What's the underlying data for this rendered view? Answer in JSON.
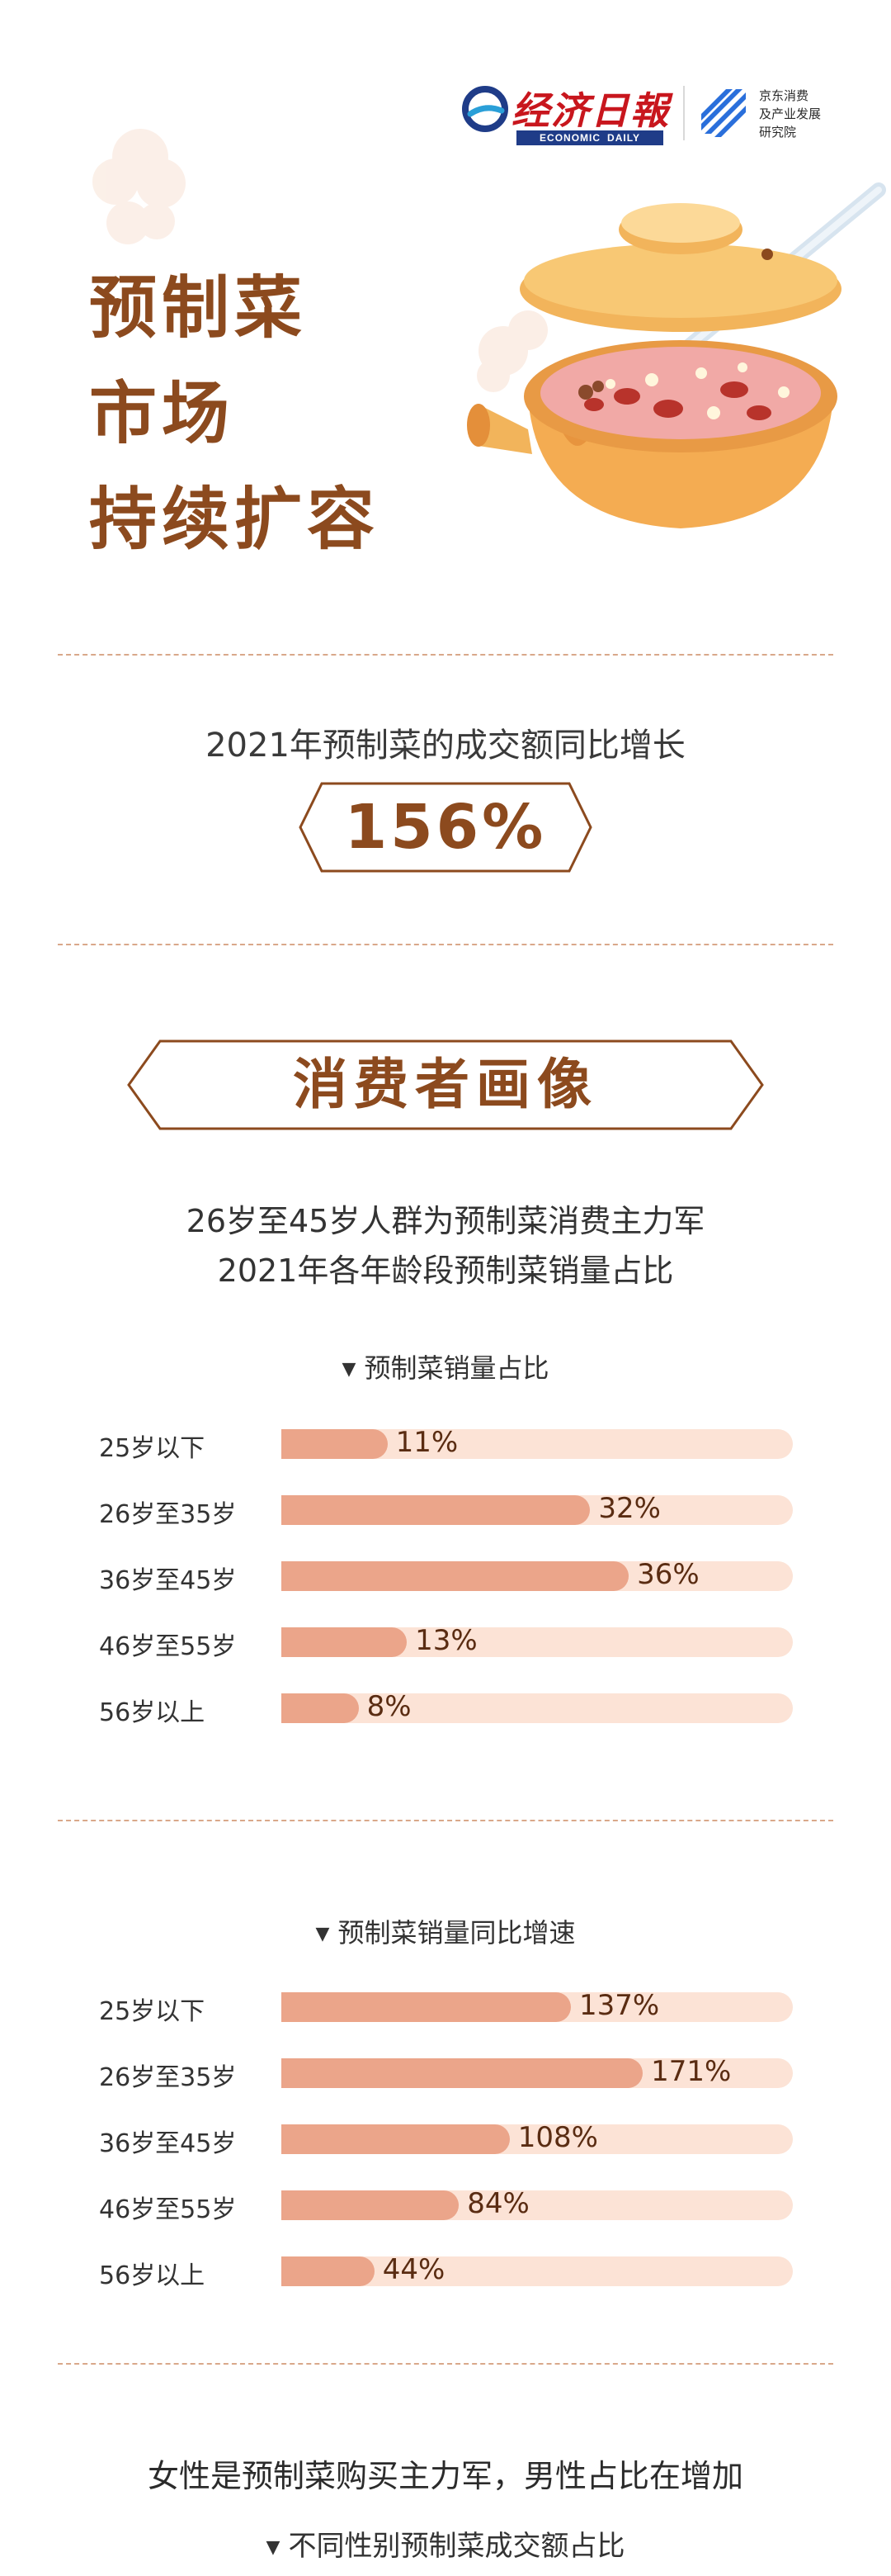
{
  "header": {
    "brand_cn": "经济日報",
    "brand_en_left": "ECONOMIC",
    "brand_en_right": "DAILY",
    "jd_lines": [
      "京东消费",
      "及产业发展",
      "研究院"
    ],
    "colors": {
      "brand_red": "#c8161d",
      "brand_blue": "#1f3c88",
      "jd_blue": "#2a6fdb"
    }
  },
  "hero": {
    "title_lines": [
      "预制菜",
      "市场",
      "持续扩容"
    ],
    "illustration": "clay-pot-icon"
  },
  "stat": {
    "caption": "2021年预制菜的成交额同比增长",
    "value": "156%"
  },
  "section": {
    "title": "消费者画像",
    "subtitle_1": "26岁至45岁人群为预制菜消费主力军",
    "subtitle_2": "2021年各年龄段预制菜销量占比"
  },
  "chart_data": [
    {
      "type": "bar",
      "title": "预制菜销量占比",
      "categories": [
        "25岁以下",
        "26岁至35岁",
        "36岁至45岁",
        "46岁至55岁",
        "56岁以上"
      ],
      "values": [
        11,
        32,
        36,
        13,
        8
      ],
      "labels": [
        "11%",
        "32%",
        "36%",
        "13%",
        "8%"
      ],
      "unit": "%",
      "xlim": [
        0,
        53
      ]
    },
    {
      "type": "bar",
      "title": "预制菜销量同比增速",
      "categories": [
        "25岁以下",
        "26岁至35岁",
        "36岁至45岁",
        "46岁至55岁",
        "56岁以上"
      ],
      "values": [
        137,
        171,
        108,
        84,
        44
      ],
      "labels": [
        "137%",
        "171%",
        "108%",
        "84%",
        "44%"
      ],
      "unit": "%",
      "xlim": [
        0,
        242
      ]
    }
  ],
  "chart_colors": {
    "bar": "#eba58a",
    "track": "#fce3d6",
    "value_text": "#5a2c12"
  },
  "footer": {
    "line_1": "女性是预制菜购买主力军，男性占比在增加",
    "line_2": "不同性别预制菜成交额占比"
  },
  "accent": {
    "title_brown": "#8c4a1e",
    "dash": "#d9a88a"
  }
}
